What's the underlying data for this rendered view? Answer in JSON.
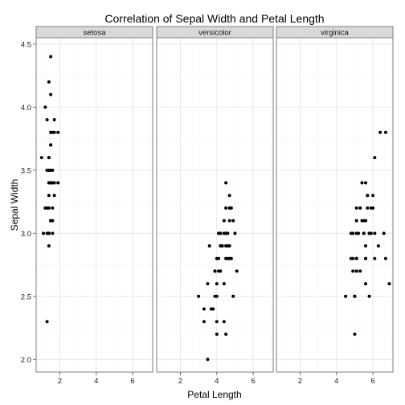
{
  "chart_data": {
    "type": "scatter",
    "title": "Correlation of Sepal Width and Petal Length",
    "xlabel": "Petal Length",
    "ylabel": "Sepal Width",
    "xlim": [
      0.7,
      7.1
    ],
    "ylim": [
      1.9,
      4.55
    ],
    "x_ticks": [
      2,
      4,
      6
    ],
    "y_ticks": [
      2.0,
      2.5,
      3.0,
      3.5,
      4.0,
      4.5
    ],
    "x_tick_labels": [
      "2",
      "4",
      "6"
    ],
    "y_tick_labels": [
      "2.0",
      "2.5",
      "3.0",
      "3.5",
      "4.0",
      "4.5"
    ],
    "grid": true,
    "facets": [
      {
        "label": "setosa",
        "points": [
          [
            1.4,
            3.5
          ],
          [
            1.4,
            3.0
          ],
          [
            1.3,
            3.2
          ],
          [
            1.5,
            3.1
          ],
          [
            1.4,
            3.6
          ],
          [
            1.7,
            3.9
          ],
          [
            1.4,
            3.4
          ],
          [
            1.5,
            3.4
          ],
          [
            1.4,
            2.9
          ],
          [
            1.5,
            3.1
          ],
          [
            1.5,
            3.7
          ],
          [
            1.6,
            3.4
          ],
          [
            1.4,
            3.0
          ],
          [
            1.1,
            3.0
          ],
          [
            1.2,
            4.0
          ],
          [
            1.5,
            4.4
          ],
          [
            1.3,
            3.9
          ],
          [
            1.4,
            3.5
          ],
          [
            1.7,
            3.8
          ],
          [
            1.5,
            3.8
          ],
          [
            1.7,
            3.4
          ],
          [
            1.5,
            3.7
          ],
          [
            1.0,
            3.6
          ],
          [
            1.7,
            3.3
          ],
          [
            1.9,
            3.4
          ],
          [
            1.6,
            3.0
          ],
          [
            1.6,
            3.4
          ],
          [
            1.5,
            3.5
          ],
          [
            1.4,
            3.4
          ],
          [
            1.6,
            3.2
          ],
          [
            1.6,
            3.1
          ],
          [
            1.5,
            3.4
          ],
          [
            1.5,
            4.1
          ],
          [
            1.4,
            4.2
          ],
          [
            1.5,
            3.1
          ],
          [
            1.2,
            3.2
          ],
          [
            1.3,
            3.5
          ],
          [
            1.4,
            3.6
          ],
          [
            1.3,
            3.0
          ],
          [
            1.5,
            3.4
          ],
          [
            1.3,
            3.5
          ],
          [
            1.3,
            2.3
          ],
          [
            1.3,
            3.2
          ],
          [
            1.6,
            3.5
          ],
          [
            1.9,
            3.8
          ],
          [
            1.4,
            3.0
          ],
          [
            1.6,
            3.8
          ],
          [
            1.4,
            3.2
          ],
          [
            1.5,
            3.7
          ],
          [
            1.4,
            3.3
          ]
        ]
      },
      {
        "label": "versicolor",
        "points": [
          [
            4.7,
            3.2
          ],
          [
            4.5,
            3.2
          ],
          [
            4.9,
            3.1
          ],
          [
            4.0,
            2.3
          ],
          [
            4.6,
            2.8
          ],
          [
            4.5,
            2.8
          ],
          [
            4.7,
            3.3
          ],
          [
            3.3,
            2.4
          ],
          [
            4.6,
            2.9
          ],
          [
            3.9,
            2.7
          ],
          [
            3.5,
            2.0
          ],
          [
            4.2,
            3.0
          ],
          [
            4.0,
            2.2
          ],
          [
            4.7,
            2.9
          ],
          [
            3.6,
            2.9
          ],
          [
            4.4,
            3.1
          ],
          [
            4.5,
            3.0
          ],
          [
            4.1,
            2.7
          ],
          [
            4.5,
            2.2
          ],
          [
            3.9,
            2.5
          ],
          [
            4.8,
            3.2
          ],
          [
            4.0,
            2.8
          ],
          [
            4.9,
            2.5
          ],
          [
            4.7,
            2.8
          ],
          [
            4.3,
            2.9
          ],
          [
            4.4,
            3.0
          ],
          [
            4.8,
            2.8
          ],
          [
            5.0,
            3.0
          ],
          [
            4.5,
            2.9
          ],
          [
            3.5,
            2.6
          ],
          [
            3.8,
            2.4
          ],
          [
            3.7,
            2.4
          ],
          [
            3.9,
            2.7
          ],
          [
            5.1,
            2.7
          ],
          [
            4.5,
            3.0
          ],
          [
            4.5,
            3.4
          ],
          [
            4.7,
            3.1
          ],
          [
            4.4,
            2.3
          ],
          [
            4.1,
            3.0
          ],
          [
            4.0,
            2.5
          ],
          [
            4.4,
            2.6
          ],
          [
            4.6,
            3.0
          ],
          [
            4.0,
            2.6
          ],
          [
            3.3,
            2.3
          ],
          [
            4.2,
            2.7
          ],
          [
            4.2,
            3.0
          ],
          [
            4.2,
            2.9
          ],
          [
            4.3,
            2.9
          ],
          [
            3.0,
            2.5
          ],
          [
            4.1,
            2.8
          ]
        ]
      },
      {
        "label": "virginica",
        "points": [
          [
            6.0,
            3.3
          ],
          [
            5.1,
            2.7
          ],
          [
            5.9,
            3.0
          ],
          [
            5.6,
            2.9
          ],
          [
            5.8,
            3.0
          ],
          [
            6.6,
            3.0
          ],
          [
            4.5,
            2.5
          ],
          [
            6.3,
            2.9
          ],
          [
            5.8,
            2.5
          ],
          [
            6.1,
            3.6
          ],
          [
            5.1,
            3.2
          ],
          [
            5.3,
            2.7
          ],
          [
            5.5,
            3.0
          ],
          [
            5.0,
            2.5
          ],
          [
            5.1,
            2.8
          ],
          [
            5.3,
            3.2
          ],
          [
            5.5,
            3.0
          ],
          [
            6.7,
            3.8
          ],
          [
            6.9,
            2.6
          ],
          [
            5.0,
            2.2
          ],
          [
            5.7,
            3.2
          ],
          [
            4.9,
            2.8
          ],
          [
            6.7,
            2.8
          ],
          [
            4.9,
            2.7
          ],
          [
            5.7,
            3.3
          ],
          [
            6.0,
            3.2
          ],
          [
            4.8,
            2.8
          ],
          [
            4.9,
            3.0
          ],
          [
            5.6,
            2.8
          ],
          [
            5.8,
            3.0
          ],
          [
            6.1,
            2.8
          ],
          [
            6.4,
            3.8
          ],
          [
            5.6,
            2.8
          ],
          [
            5.1,
            2.8
          ],
          [
            5.6,
            2.6
          ],
          [
            6.1,
            3.0
          ],
          [
            5.6,
            3.4
          ],
          [
            5.5,
            3.1
          ],
          [
            4.8,
            3.0
          ],
          [
            5.4,
            3.1
          ],
          [
            5.6,
            3.1
          ],
          [
            5.1,
            3.1
          ],
          [
            5.1,
            2.7
          ],
          [
            5.9,
            3.2
          ],
          [
            5.7,
            3.3
          ],
          [
            5.2,
            3.0
          ],
          [
            5.0,
            2.5
          ],
          [
            5.2,
            3.0
          ],
          [
            5.4,
            3.4
          ],
          [
            5.1,
            3.0
          ]
        ]
      }
    ]
  }
}
